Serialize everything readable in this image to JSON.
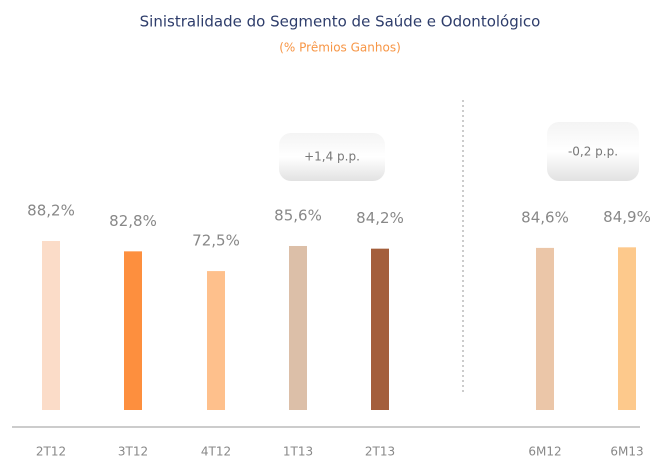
{
  "chart_data": {
    "type": "bar",
    "title": "Sinistralidade do Segmento de Saúde e Odontológico",
    "subtitle": "(% Prêmios Ganhos)",
    "categories": [
      "2T12",
      "3T12",
      "4T12",
      "1T13",
      "2T13",
      "6M12",
      "6M13"
    ],
    "values": [
      88.2,
      82.8,
      72.5,
      85.6,
      84.2,
      84.6,
      84.9
    ],
    "value_labels": [
      "88,2%",
      "82,8%",
      "72,5%",
      "85,6%",
      "84,2%",
      "84,6%",
      "84,9%"
    ],
    "colors": [
      "#fbdcc8",
      "#fd8f3e",
      "#fec08c",
      "#dcbfa8",
      "#a45e3b",
      "#ebc6a8",
      "#fdc98c"
    ],
    "annotations": [
      "+1,4 p.p.",
      "-0,2 p.p."
    ]
  }
}
